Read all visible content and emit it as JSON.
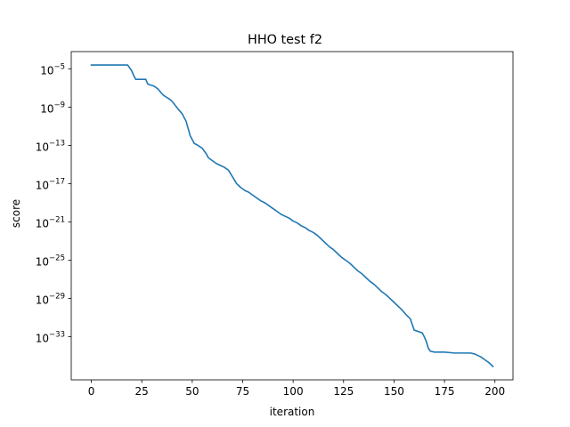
{
  "chart_data": {
    "type": "line",
    "title": "HHO test f2",
    "xlabel": "iteration",
    "ylabel": "score",
    "xlim": [
      -9.95,
      208.95
    ],
    "ylim_log10": [
      -37.5,
      -3.2
    ],
    "yscale": "log",
    "grid": false,
    "x_ticks": [
      {
        "value": 0,
        "label": "0"
      },
      {
        "value": 25,
        "label": "25"
      },
      {
        "value": 50,
        "label": "50"
      },
      {
        "value": 75,
        "label": "75"
      },
      {
        "value": 100,
        "label": "100"
      },
      {
        "value": 125,
        "label": "125"
      },
      {
        "value": 150,
        "label": "150"
      },
      {
        "value": 175,
        "label": "175"
      },
      {
        "value": 200,
        "label": "200"
      }
    ],
    "y_ticks": [
      {
        "exp": -5,
        "base": "10",
        "power": "−5"
      },
      {
        "exp": -9,
        "base": "10",
        "power": "−9"
      },
      {
        "exp": -13,
        "base": "10",
        "power": "−13"
      },
      {
        "exp": -17,
        "base": "10",
        "power": "−17"
      },
      {
        "exp": -21,
        "base": "10",
        "power": "−21"
      },
      {
        "exp": -25,
        "base": "10",
        "power": "−25"
      },
      {
        "exp": -29,
        "base": "10",
        "power": "−29"
      },
      {
        "exp": -33,
        "base": "10",
        "power": "−33"
      }
    ],
    "series": [
      {
        "color": "#1f77b4",
        "x": [
          0,
          18,
          20,
          21,
          22,
          27,
          28,
          31,
          33,
          35,
          36,
          39,
          40,
          43,
          45,
          47,
          49,
          51,
          52,
          55,
          57,
          58,
          60,
          62,
          64,
          66,
          68,
          70,
          72,
          74,
          76,
          78,
          80,
          82,
          84,
          86,
          88,
          90,
          92,
          94,
          96,
          98,
          100,
          102,
          104,
          106,
          108,
          110,
          112,
          114,
          116,
          118,
          120,
          122,
          124,
          126,
          128,
          130,
          132,
          134,
          136,
          138,
          140,
          142,
          144,
          146,
          148,
          150,
          152,
          154,
          156,
          158,
          160,
          164,
          165,
          166,
          167,
          168,
          170,
          175,
          180,
          188,
          190,
          193,
          195,
          197,
          199
        ],
        "log10_y": [
          -4.6,
          -4.6,
          -5.2,
          -5.7,
          -6.1,
          -6.1,
          -6.6,
          -6.8,
          -7.1,
          -7.6,
          -7.8,
          -8.2,
          -8.4,
          -9.2,
          -9.7,
          -10.5,
          -12.0,
          -12.8,
          -12.9,
          -13.3,
          -13.9,
          -14.3,
          -14.6,
          -14.9,
          -15.1,
          -15.3,
          -15.6,
          -16.3,
          -17.0,
          -17.4,
          -17.7,
          -17.9,
          -18.2,
          -18.5,
          -18.8,
          -19.0,
          -19.3,
          -19.6,
          -19.9,
          -20.2,
          -20.4,
          -20.6,
          -20.9,
          -21.1,
          -21.4,
          -21.6,
          -21.9,
          -22.1,
          -22.4,
          -22.8,
          -23.2,
          -23.6,
          -23.9,
          -24.3,
          -24.7,
          -25.0,
          -25.3,
          -25.7,
          -26.1,
          -26.4,
          -26.8,
          -27.2,
          -27.5,
          -27.9,
          -28.3,
          -28.6,
          -29.0,
          -29.4,
          -29.8,
          -30.2,
          -30.7,
          -31.1,
          -32.3,
          -32.6,
          -33.0,
          -33.5,
          -34.2,
          -34.5,
          -34.6,
          -34.6,
          -34.7,
          -34.7,
          -34.8,
          -35.1,
          -35.4,
          -35.7,
          -36.1
        ]
      }
    ]
  }
}
